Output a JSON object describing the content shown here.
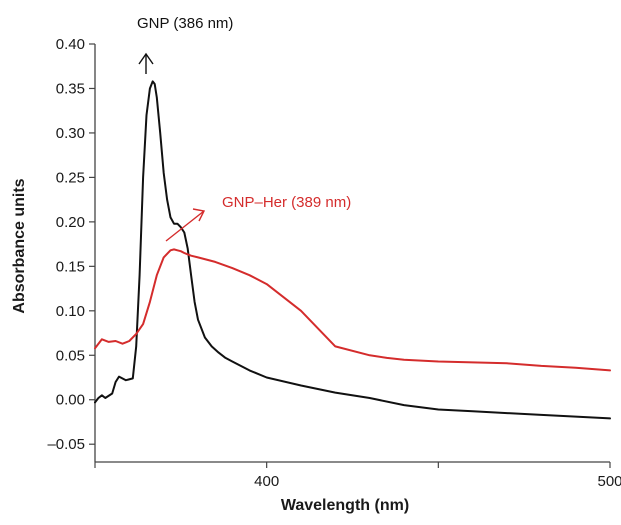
{
  "chart_data": {
    "type": "line",
    "title": "",
    "xlabel": "Wavelength (nm)",
    "ylabel": "Absorbance units",
    "xlim": [
      350,
      500
    ],
    "ylim": [
      -0.07,
      0.4
    ],
    "x_ticks": [
      {
        "value": 400,
        "label": "400"
      },
      {
        "value": 500,
        "label": "500"
      }
    ],
    "y_ticks": [
      {
        "value": 0.4,
        "label": "0.40"
      },
      {
        "value": 0.35,
        "label": "0.35"
      },
      {
        "value": 0.3,
        "label": "0.30"
      },
      {
        "value": 0.25,
        "label": "0.25"
      },
      {
        "value": 0.2,
        "label": "0.20"
      },
      {
        "value": 0.15,
        "label": "0.15"
      },
      {
        "value": 0.1,
        "label": "0.10"
      },
      {
        "value": 0.05,
        "label": "0.05"
      },
      {
        "value": 0.0,
        "label": "0.00"
      },
      {
        "value": -0.05,
        "label": "–0.05"
      }
    ],
    "grid": false,
    "series": [
      {
        "name": "GNP",
        "color": "#111111",
        "x": [
          350,
          351,
          352,
          353,
          355,
          356,
          357,
          359,
          361,
          362,
          363,
          364,
          365,
          366,
          366.8,
          367.4,
          368,
          369,
          370,
          371,
          372,
          373,
          374,
          375,
          376,
          377,
          378,
          379,
          380,
          382,
          384,
          386,
          388,
          390,
          395,
          400,
          410,
          420,
          430,
          440,
          450,
          460,
          470,
          480,
          490,
          500
        ],
        "y": [
          -0.003,
          0.002,
          0.005,
          0.002,
          0.007,
          0.02,
          0.026,
          0.022,
          0.024,
          0.06,
          0.14,
          0.25,
          0.32,
          0.35,
          0.358,
          0.355,
          0.34,
          0.3,
          0.255,
          0.225,
          0.205,
          0.198,
          0.198,
          0.194,
          0.188,
          0.17,
          0.14,
          0.11,
          0.09,
          0.07,
          0.06,
          0.053,
          0.047,
          0.043,
          0.033,
          0.025,
          0.016,
          0.008,
          0.002,
          -0.006,
          -0.011,
          -0.013,
          -0.015,
          -0.017,
          -0.019,
          -0.021
        ]
      },
      {
        "name": "GNP–Her",
        "color": "#d42c2c",
        "x": [
          350,
          352,
          354,
          356,
          358,
          360,
          362,
          364,
          366,
          368,
          370,
          372,
          373,
          374,
          375,
          376,
          378,
          380,
          385,
          390,
          395,
          400,
          410,
          420,
          430,
          435,
          440,
          450,
          460,
          470,
          480,
          490,
          500
        ],
        "y": [
          0.058,
          0.068,
          0.065,
          0.066,
          0.063,
          0.066,
          0.074,
          0.085,
          0.11,
          0.14,
          0.16,
          0.168,
          0.169,
          0.168,
          0.167,
          0.165,
          0.162,
          0.16,
          0.155,
          0.148,
          0.14,
          0.13,
          0.1,
          0.06,
          0.05,
          0.047,
          0.045,
          0.043,
          0.042,
          0.041,
          0.038,
          0.036,
          0.033
        ]
      }
    ],
    "annotations": [
      {
        "text": "GNP (386 nm)",
        "color": "#111111"
      },
      {
        "text": "GNP–Her (389 nm)",
        "color": "#d42c2c"
      }
    ]
  }
}
